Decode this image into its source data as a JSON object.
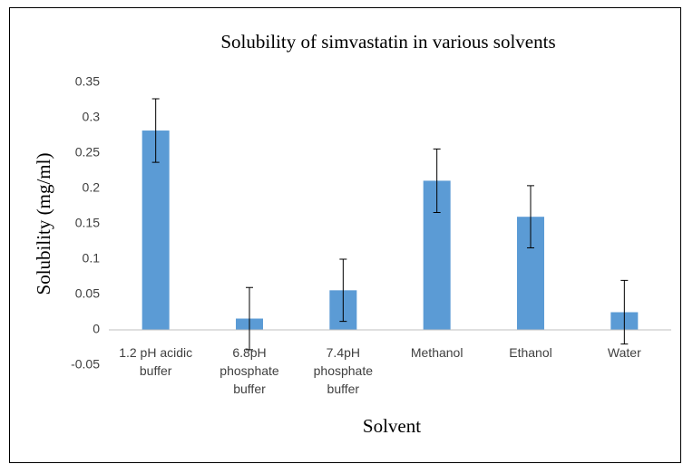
{
  "chart_data": {
    "type": "bar",
    "title": "Solubility of simvastatin in various solvents",
    "x_label": "Solvent",
    "y_label": "Solubility (mg/ml)",
    "categories": [
      "1.2 pH acidic buffer",
      "6.8pH phosphate buffer",
      "7.4pH phosphate buffer",
      "Methanol",
      "Ethanol",
      "Water"
    ],
    "values": [
      0.282,
      0.016,
      0.056,
      0.211,
      0.16,
      0.025
    ],
    "errors": [
      0.045,
      0.044,
      0.044,
      0.045,
      0.044,
      0.045
    ],
    "color": "#5b9bd5",
    "ylim": [
      -0.05,
      0.35
    ],
    "yticks": [
      -0.05,
      0,
      0.05,
      0.1,
      0.15,
      0.2,
      0.25,
      0.3,
      0.35
    ],
    "grid": false
  }
}
